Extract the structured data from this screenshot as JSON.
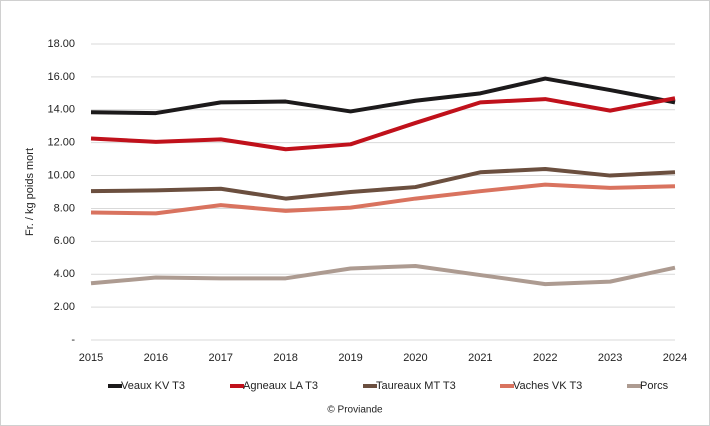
{
  "chart_data": {
    "type": "line",
    "y_label": "Fr. / kg poids mort",
    "source": "© Proviande",
    "categories": [
      "2015",
      "2016",
      "2017",
      "2018",
      "2019",
      "2020",
      "2021",
      "2022",
      "2023",
      "2024"
    ],
    "series": [
      {
        "name": "Veaux KV T3",
        "color": "#1c1a1b",
        "values": [
          13.85,
          13.8,
          14.45,
          14.5,
          13.9,
          14.55,
          15.0,
          15.9,
          15.2,
          14.45
        ]
      },
      {
        "name": "Agneaux LA T3",
        "color": "#c0111b",
        "values": [
          12.25,
          12.05,
          12.2,
          11.6,
          11.9,
          13.2,
          14.45,
          14.65,
          13.95,
          14.7
        ]
      },
      {
        "name": "Taureaux MT T3",
        "color": "#6b4f3f",
        "values": [
          9.05,
          9.1,
          9.2,
          8.6,
          9.0,
          9.3,
          10.2,
          10.4,
          10.0,
          10.2
        ]
      },
      {
        "name": "Vaches VK T3",
        "color": "#d9735f",
        "values": [
          7.75,
          7.7,
          8.2,
          7.85,
          8.05,
          8.6,
          9.05,
          9.45,
          9.25,
          9.35
        ]
      },
      {
        "name": "Porcs",
        "color": "#ad9b91",
        "values": [
          3.45,
          3.8,
          3.75,
          3.75,
          4.35,
          4.5,
          3.95,
          3.4,
          3.55,
          4.4
        ]
      }
    ],
    "ylim": [
      0,
      18
    ],
    "yticks": [
      {
        "value": 0,
        "label": "-"
      },
      {
        "value": 2,
        "label": "2.00"
      },
      {
        "value": 4,
        "label": "4.00"
      },
      {
        "value": 6,
        "label": "6.00"
      },
      {
        "value": 8,
        "label": "8.00"
      },
      {
        "value": 10,
        "label": "10.00"
      },
      {
        "value": 12,
        "label": "12.00"
      },
      {
        "value": 14,
        "label": "14.00"
      },
      {
        "value": 16,
        "label": "16.00"
      },
      {
        "value": 18,
        "label": "18.00"
      }
    ],
    "grid": true
  }
}
